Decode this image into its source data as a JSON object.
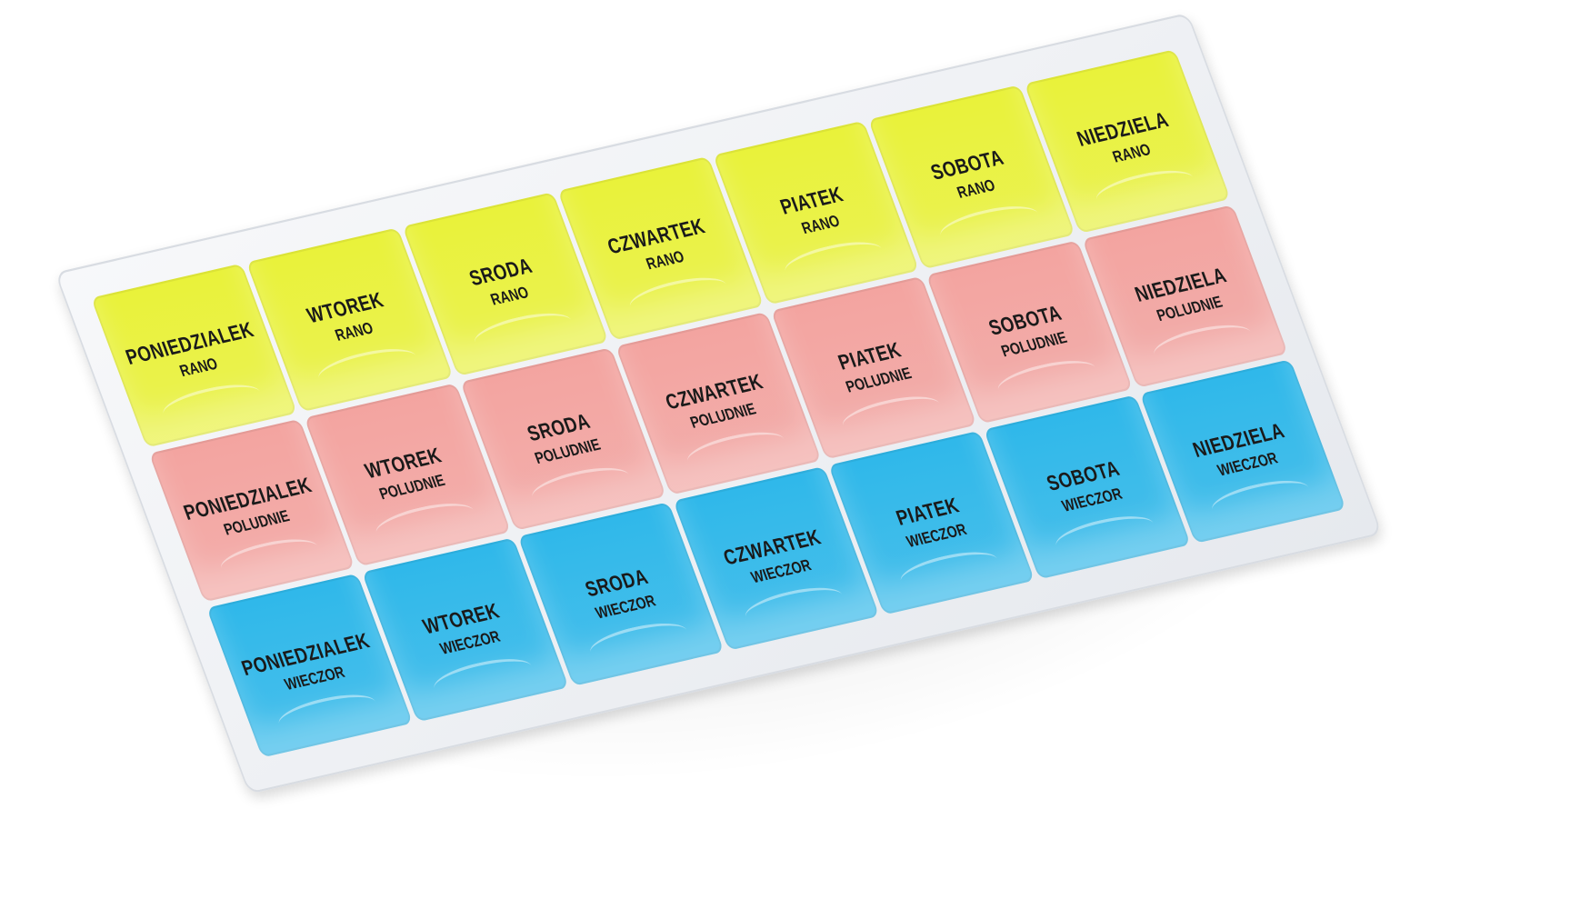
{
  "days": [
    "PONIEDZIALEK",
    "WTOREK",
    "SRODA",
    "CZWARTEK",
    "PIATEK",
    "SOBOTA",
    "NIEDZIELA"
  ],
  "rows": [
    {
      "time": "RANO",
      "color": "#e9f23a"
    },
    {
      "time": "POLUDNIE",
      "color": "#f3a4a0"
    },
    {
      "time": "WIECZOR",
      "color": "#2fb8ea"
    }
  ]
}
